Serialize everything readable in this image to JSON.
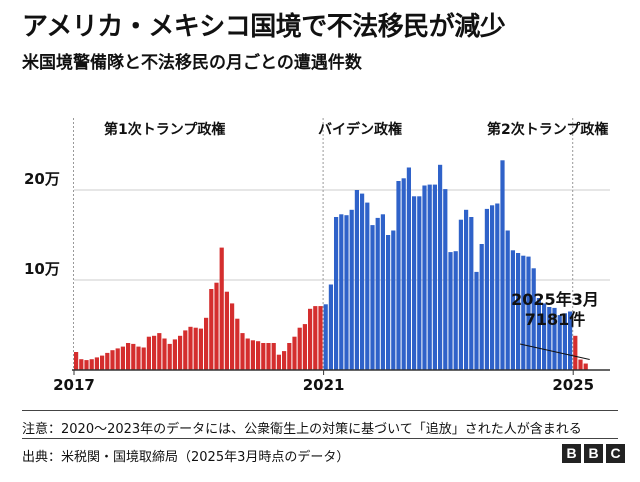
{
  "title": "アメリカ・メキシコ国境で不法移民が減少",
  "subtitle": "米国境警備隊と不法移民の月ごとの遭遇件数",
  "note": "注意：2020～2023年のデータには、公衆衛生上の対策に基づいて「追放」された人が含まれる",
  "source": "出典：米税関・国境取締局（2025年3月時点のデータ）",
  "logo": [
    "B",
    "B",
    "C"
  ],
  "colors": {
    "trump": "#d42e2e",
    "biden": "#2f62c9",
    "grid": "#cccccc",
    "baseline": "#333333"
  },
  "chart_data": {
    "type": "bar",
    "x_start": "2017-01",
    "x_end": "2025-03",
    "ylim": [
      0,
      260000
    ],
    "yticks": [
      {
        "value": 100000,
        "label": "10万"
      },
      {
        "value": 200000,
        "label": "20万"
      }
    ],
    "xticks": [
      {
        "value": "2017-01",
        "label": "2017"
      },
      {
        "value": "2021-01",
        "label": "2021"
      },
      {
        "value": "2025-01",
        "label": "2025"
      }
    ],
    "eras": [
      {
        "label": "第1次トランプ政権",
        "start": "2017-01",
        "color": "#d42e2e"
      },
      {
        "label": "バイデン政権",
        "start": "2021-01",
        "color": "#2f62c9"
      },
      {
        "label": "第2次トランプ政権",
        "start": "2025-01",
        "color": "#d42e2e"
      }
    ],
    "series": [
      {
        "values": [
          20000,
          12000,
          11000,
          12000,
          14000,
          16000,
          19000,
          22000,
          24000,
          26000,
          30000,
          29000,
          26000,
          25000,
          37000,
          38000,
          41000,
          35000,
          29000,
          34000,
          38000,
          44000,
          48000,
          47000,
          46000,
          58000,
          90000,
          97000,
          136000,
          87000,
          74000,
          57000,
          41000,
          35000,
          33000,
          32000,
          30000,
          30000,
          30000,
          17000,
          21000,
          30000,
          37000,
          47000,
          51000,
          68000,
          71000,
          71000,
          73000,
          95000,
          170000,
          173000,
          172000,
          178000,
          200000,
          196000,
          186000,
          161000,
          169000,
          173000,
          150000,
          155000,
          210000,
          213000,
          225000,
          193000,
          193000,
          205000,
          206000,
          206000,
          228000,
          201000,
          131000,
          132000,
          167000,
          178000,
          170000,
          109000,
          140000,
          179000,
          183000,
          185000,
          233000,
          155000,
          133000,
          130000,
          127000,
          126000,
          113000,
          80000,
          74000,
          70000,
          69000,
          61000,
          63000,
          65000,
          38000,
          11600,
          7181
        ]
      }
    ],
    "annotation": {
      "date": "2025-03",
      "label": [
        "2025年3月",
        "7181件"
      ]
    }
  }
}
